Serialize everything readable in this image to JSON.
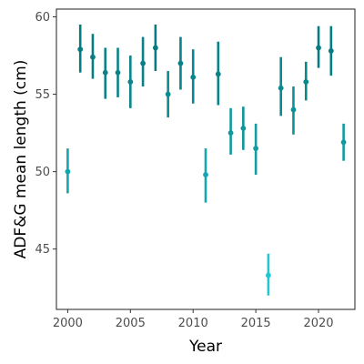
{
  "chart_data": {
    "type": "scatter",
    "title": "",
    "xlabel": "Year",
    "ylabel": "ADF&G mean length (cm)",
    "xlim": [
      1999.1,
      2022.9
    ],
    "ylim": [
      41.1,
      60.5
    ],
    "xticks": [
      2000,
      2005,
      2010,
      2015,
      2020
    ],
    "yticks": [
      45,
      50,
      55,
      60
    ],
    "grid": false,
    "legend": "none",
    "colors": {
      "low": "#1fc8d0",
      "high": "#077b7f"
    },
    "color_range": [
      43.3,
      58.0
    ],
    "points": [
      {
        "year": 2000,
        "mean": 50.0,
        "lower": 48.6,
        "upper": 51.5
      },
      {
        "year": 2001,
        "mean": 57.9,
        "lower": 56.4,
        "upper": 59.5
      },
      {
        "year": 2002,
        "mean": 57.4,
        "lower": 56.0,
        "upper": 58.9
      },
      {
        "year": 2003,
        "mean": 56.4,
        "lower": 54.7,
        "upper": 58.0
      },
      {
        "year": 2004,
        "mean": 56.4,
        "lower": 54.8,
        "upper": 58.0
      },
      {
        "year": 2005,
        "mean": 55.8,
        "lower": 54.1,
        "upper": 57.5
      },
      {
        "year": 2006,
        "mean": 57.0,
        "lower": 55.5,
        "upper": 58.7
      },
      {
        "year": 2007,
        "mean": 58.0,
        "lower": 56.5,
        "upper": 59.5
      },
      {
        "year": 2008,
        "mean": 55.0,
        "lower": 53.5,
        "upper": 56.5
      },
      {
        "year": 2009,
        "mean": 57.0,
        "lower": 55.3,
        "upper": 58.7
      },
      {
        "year": 2010,
        "mean": 56.1,
        "lower": 54.4,
        "upper": 57.9
      },
      {
        "year": 2011,
        "mean": 49.8,
        "lower": 48.0,
        "upper": 51.5
      },
      {
        "year": 2012,
        "mean": 56.3,
        "lower": 54.3,
        "upper": 58.4
      },
      {
        "year": 2013,
        "mean": 52.5,
        "lower": 51.1,
        "upper": 54.1
      },
      {
        "year": 2014,
        "mean": 52.8,
        "lower": 51.4,
        "upper": 54.2
      },
      {
        "year": 2015,
        "mean": 51.5,
        "lower": 49.8,
        "upper": 53.1
      },
      {
        "year": 2016,
        "mean": 43.3,
        "lower": 42.0,
        "upper": 44.7
      },
      {
        "year": 2017,
        "mean": 55.4,
        "lower": 53.6,
        "upper": 57.4
      },
      {
        "year": 2018,
        "mean": 54.0,
        "lower": 52.4,
        "upper": 55.5
      },
      {
        "year": 2019,
        "mean": 55.8,
        "lower": 54.6,
        "upper": 57.1
      },
      {
        "year": 2020,
        "mean": 58.0,
        "lower": 56.7,
        "upper": 59.4
      },
      {
        "year": 2021,
        "mean": 57.8,
        "lower": 56.2,
        "upper": 59.4
      },
      {
        "year": 2022,
        "mean": 51.9,
        "lower": 50.7,
        "upper": 53.1
      }
    ]
  }
}
